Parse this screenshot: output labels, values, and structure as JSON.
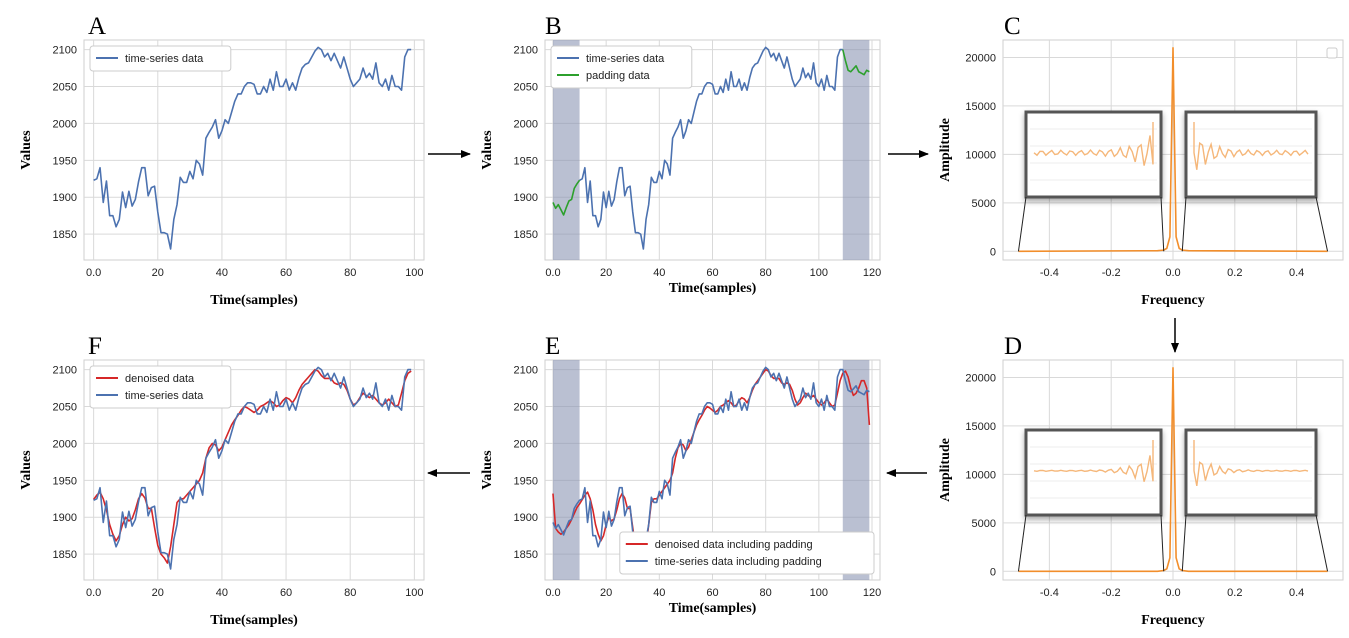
{
  "arrow_color": "#000000",
  "chart_data": [
    {
      "panel": "A",
      "type": "line",
      "xlabel": "Time(samples)",
      "ylabel": "Values",
      "xlim": [
        -3,
        103
      ],
      "ylim": [
        1815,
        2113
      ],
      "xticks": [
        0,
        20,
        40,
        60,
        80,
        100
      ],
      "yticks": [
        1850,
        1900,
        1950,
        2000,
        2050,
        2100
      ],
      "grid": true,
      "legend_position": "top-left",
      "series": [
        {
          "name": "time-series data",
          "color": "#4c72b0",
          "x_start": 0,
          "values": [
            1923,
            1925,
            1940,
            1893,
            1922,
            1875,
            1875,
            1860,
            1870,
            1907,
            1886,
            1908,
            1888,
            1897,
            1921,
            1940,
            1940,
            1902,
            1913,
            1915,
            1880,
            1852,
            1852,
            1850,
            1830,
            1870,
            1890,
            1927,
            1920,
            1920,
            1935,
            1925,
            1950,
            1945,
            1930,
            1980,
            1988,
            1995,
            2005,
            1980,
            1990,
            2005,
            2000,
            2015,
            2030,
            2040,
            2040,
            2050,
            2055,
            2055,
            2053,
            2040,
            2040,
            2050,
            2042,
            2060,
            2045,
            2070,
            2050,
            2050,
            2060,
            2045,
            2055,
            2045,
            2062,
            2075,
            2080,
            2082,
            2090,
            2098,
            2103,
            2100,
            2090,
            2095,
            2085,
            2095,
            2085,
            2075,
            2090,
            2075,
            2060,
            2050,
            2055,
            2060,
            2075,
            2062,
            2068,
            2060,
            2082,
            2055,
            2050,
            2060,
            2045,
            2065,
            2050,
            2050,
            2045,
            2090,
            2100,
            2100
          ]
        }
      ]
    },
    {
      "panel": "B",
      "type": "line",
      "xlabel": "Time(samples)",
      "ylabel": "Values",
      "xlim": [
        -3,
        123
      ],
      "ylim": [
        1815,
        2113
      ],
      "xticks": [
        0,
        20,
        40,
        60,
        80,
        100,
        120
      ],
      "yticks": [
        1850,
        1900,
        1950,
        2000,
        2050,
        2100
      ],
      "grid": true,
      "legend_position": "top-left",
      "shaded_ranges": [
        [
          0,
          10
        ],
        [
          109,
          119
        ]
      ],
      "series": [
        {
          "name": "time-series data",
          "color": "#4c72b0",
          "x_start": 10,
          "values": [
            1923,
            1925,
            1940,
            1893,
            1922,
            1875,
            1875,
            1860,
            1870,
            1907,
            1886,
            1908,
            1888,
            1897,
            1921,
            1940,
            1940,
            1902,
            1913,
            1915,
            1880,
            1852,
            1852,
            1850,
            1830,
            1870,
            1890,
            1927,
            1920,
            1920,
            1935,
            1925,
            1950,
            1945,
            1930,
            1980,
            1988,
            1995,
            2005,
            1980,
            1990,
            2005,
            2000,
            2015,
            2030,
            2040,
            2040,
            2050,
            2055,
            2055,
            2053,
            2040,
            2040,
            2050,
            2042,
            2060,
            2045,
            2070,
            2050,
            2050,
            2060,
            2045,
            2055,
            2045,
            2062,
            2075,
            2080,
            2082,
            2090,
            2098,
            2103,
            2100,
            2090,
            2095,
            2085,
            2095,
            2085,
            2075,
            2090,
            2075,
            2060,
            2050,
            2055,
            2060,
            2075,
            2062,
            2068,
            2060,
            2082,
            2055,
            2050,
            2060,
            2045,
            2065,
            2050,
            2050,
            2045,
            2090,
            2100,
            2100
          ]
        },
        {
          "name": "padding data",
          "color": "#2ca02c",
          "segments": [
            {
              "x_start": 0,
              "values": [
                1893,
                1885,
                1890,
                1883,
                1876,
                1886,
                1895,
                1897,
                1912,
                1918,
                1923
              ]
            },
            {
              "x_start": 109,
              "values": [
                2100,
                2085,
                2072,
                2070,
                2074,
                2078,
                2070,
                2068,
                2066,
                2072,
                2070
              ]
            }
          ]
        }
      ]
    },
    {
      "panel": "C",
      "type": "line",
      "xlabel": "Frequency",
      "ylabel": "Amplitude",
      "xlim": [
        -0.55,
        0.55
      ],
      "ylim": [
        -900,
        21800
      ],
      "xticks": [
        -0.4,
        -0.2,
        0.0,
        0.2,
        0.4
      ],
      "yticks": [
        0,
        5000,
        10000,
        15000,
        20000
      ],
      "grid": true,
      "legend": "empty box top-right",
      "series": [
        {
          "name": "",
          "color": "#f28e2b",
          "x": [
            -0.5,
            -0.05,
            -0.03,
            -0.02,
            -0.01,
            0.0,
            0.01,
            0.02,
            0.03,
            0.05,
            0.5
          ],
          "values": [
            0,
            60,
            120,
            300,
            1500,
            21000,
            1500,
            300,
            120,
            60,
            0
          ]
        }
      ]
    },
    {
      "panel": "D",
      "type": "line",
      "xlabel": "Frequency",
      "ylabel": "Amplitude",
      "xlim": [
        -0.55,
        0.55
      ],
      "ylim": [
        -900,
        21800
      ],
      "xticks": [
        -0.4,
        -0.2,
        0.0,
        0.2,
        0.4
      ],
      "yticks": [
        0,
        5000,
        10000,
        15000,
        20000
      ],
      "grid": true,
      "series": [
        {
          "name": "",
          "color": "#f28e2b",
          "x": [
            -0.5,
            -0.05,
            -0.03,
            -0.02,
            -0.01,
            0.0,
            0.01,
            0.02,
            0.03,
            0.05,
            0.5
          ],
          "values": [
            0,
            0,
            80,
            250,
            1400,
            21000,
            1400,
            250,
            80,
            0,
            0
          ]
        }
      ]
    },
    {
      "panel": "E",
      "type": "line",
      "xlabel": "Time(samples)",
      "ylabel": "Values",
      "xlim": [
        -3,
        123
      ],
      "ylim": [
        1815,
        2113
      ],
      "xticks": [
        0,
        20,
        40,
        60,
        80,
        100,
        120
      ],
      "yticks": [
        1850,
        1900,
        1950,
        2000,
        2050,
        2100
      ],
      "grid": true,
      "legend_position": "bottom-right",
      "shaded_ranges": [
        [
          0,
          10
        ],
        [
          109,
          119
        ]
      ],
      "series": [
        {
          "name": "denoised data including padding",
          "color": "#d62728",
          "x_start": 0,
          "values": [
            1932,
            1885,
            1880,
            1877,
            1880,
            1885,
            1890,
            1897,
            1905,
            1913,
            1918,
            1924,
            1930,
            1934,
            1925,
            1910,
            1890,
            1877,
            1868,
            1875,
            1890,
            1900,
            1895,
            1898,
            1910,
            1925,
            1932,
            1926,
            1912,
            1912,
            1886,
            1862,
            1850,
            1845,
            1838,
            1860,
            1890,
            1920,
            1925,
            1925,
            1930,
            1935,
            1940,
            1945,
            1950,
            1960,
            1980,
            1994,
            2000,
            1998,
            1990,
            1995,
            2005,
            2015,
            2025,
            2032,
            2038,
            2045,
            2050,
            2048,
            2045,
            2042,
            2045,
            2050,
            2052,
            2055,
            2058,
            2055,
            2050,
            2052,
            2058,
            2062,
            2060,
            2055,
            2062,
            2072,
            2080,
            2085,
            2090,
            2095,
            2100,
            2098,
            2092,
            2088,
            2088,
            2088,
            2082,
            2080,
            2082,
            2080,
            2072,
            2060,
            2052,
            2055,
            2062,
            2068,
            2065,
            2062,
            2065,
            2060,
            2055,
            2052,
            2055,
            2060,
            2055,
            2050,
            2052,
            2068,
            2085,
            2095,
            2098,
            2090,
            2075,
            2065,
            2068,
            2075,
            2085,
            2085,
            2075,
            2025
          ]
        },
        {
          "name": "time-series data including padding",
          "color": "#4c72b0",
          "x_start": 0,
          "values": [
            1893,
            1885,
            1890,
            1883,
            1876,
            1886,
            1895,
            1897,
            1912,
            1918,
            1923,
            1925,
            1940,
            1893,
            1922,
            1875,
            1875,
            1860,
            1870,
            1907,
            1886,
            1908,
            1888,
            1897,
            1921,
            1940,
            1940,
            1902,
            1913,
            1915,
            1880,
            1852,
            1852,
            1850,
            1830,
            1870,
            1890,
            1927,
            1920,
            1920,
            1935,
            1925,
            1950,
            1945,
            1930,
            1980,
            1988,
            1995,
            2005,
            1980,
            1990,
            2005,
            2000,
            2015,
            2030,
            2040,
            2040,
            2050,
            2055,
            2055,
            2053,
            2040,
            2040,
            2050,
            2042,
            2060,
            2045,
            2070,
            2050,
            2050,
            2060,
            2045,
            2055,
            2045,
            2062,
            2075,
            2080,
            2082,
            2090,
            2098,
            2103,
            2100,
            2090,
            2095,
            2085,
            2095,
            2085,
            2075,
            2090,
            2075,
            2060,
            2050,
            2055,
            2060,
            2075,
            2062,
            2068,
            2060,
            2082,
            2055,
            2050,
            2060,
            2045,
            2065,
            2050,
            2050,
            2045,
            2090,
            2100,
            2100,
            2085,
            2072,
            2070,
            2074,
            2078,
            2070,
            2068,
            2066,
            2072,
            2070
          ]
        }
      ]
    },
    {
      "panel": "F",
      "type": "line",
      "xlabel": "Time(samples)",
      "ylabel": "Values",
      "xlim": [
        -3,
        103
      ],
      "ylim": [
        1815,
        2113
      ],
      "xticks": [
        0,
        20,
        40,
        60,
        80,
        100
      ],
      "yticks": [
        1850,
        1900,
        1950,
        2000,
        2050,
        2100
      ],
      "grid": true,
      "legend_position": "top-left",
      "series": [
        {
          "name": "denoised data",
          "color": "#d62728",
          "x_start": 0,
          "values": [
            1924,
            1930,
            1934,
            1925,
            1910,
            1890,
            1877,
            1868,
            1875,
            1890,
            1900,
            1895,
            1898,
            1910,
            1925,
            1932,
            1926,
            1912,
            1912,
            1886,
            1862,
            1850,
            1845,
            1838,
            1860,
            1890,
            1920,
            1925,
            1925,
            1930,
            1935,
            1940,
            1945,
            1950,
            1960,
            1980,
            1994,
            2000,
            1998,
            1990,
            1995,
            2005,
            2015,
            2025,
            2032,
            2038,
            2045,
            2050,
            2048,
            2045,
            2042,
            2045,
            2050,
            2052,
            2055,
            2058,
            2055,
            2050,
            2052,
            2058,
            2062,
            2060,
            2055,
            2062,
            2072,
            2080,
            2085,
            2090,
            2095,
            2100,
            2098,
            2092,
            2088,
            2088,
            2088,
            2082,
            2080,
            2082,
            2080,
            2072,
            2060,
            2052,
            2055,
            2062,
            2068,
            2065,
            2062,
            2065,
            2060,
            2055,
            2052,
            2055,
            2060,
            2055,
            2050,
            2052,
            2068,
            2085,
            2095,
            2098
          ]
        },
        {
          "name": "time-series data",
          "color": "#4c72b0",
          "x_start": 0,
          "values": [
            1923,
            1925,
            1940,
            1893,
            1922,
            1875,
            1875,
            1860,
            1870,
            1907,
            1886,
            1908,
            1888,
            1897,
            1921,
            1940,
            1940,
            1902,
            1913,
            1915,
            1880,
            1852,
            1852,
            1850,
            1830,
            1870,
            1890,
            1927,
            1920,
            1920,
            1935,
            1925,
            1950,
            1945,
            1930,
            1980,
            1988,
            1995,
            2005,
            1980,
            1990,
            2005,
            2000,
            2015,
            2030,
            2040,
            2040,
            2050,
            2055,
            2055,
            2053,
            2040,
            2040,
            2050,
            2042,
            2060,
            2045,
            2070,
            2050,
            2050,
            2060,
            2045,
            2055,
            2045,
            2062,
            2075,
            2080,
            2082,
            2090,
            2098,
            2103,
            2100,
            2090,
            2095,
            2085,
            2095,
            2085,
            2075,
            2090,
            2075,
            2060,
            2050,
            2055,
            2060,
            2075,
            2062,
            2068,
            2060,
            2082,
            2055,
            2050,
            2060,
            2045,
            2065,
            2050,
            2050,
            2045,
            2090,
            2100,
            2100
          ]
        }
      ]
    }
  ]
}
